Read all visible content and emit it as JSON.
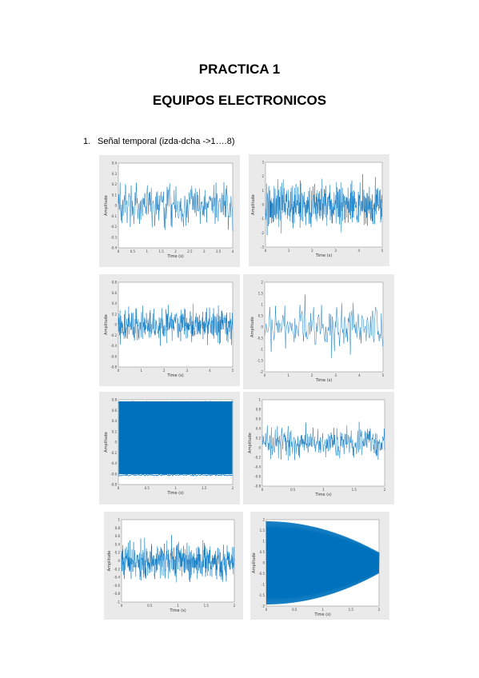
{
  "doc": {
    "title": "PRACTICA 1",
    "subtitle": "EQUIPOS ELECTRONICOS",
    "item_number": "1.",
    "item_text": "Señal temporal (izda-dcha ->1….8)"
  },
  "plot_color": "#0072bd",
  "plots": [
    {
      "xlabel": "Time (s)",
      "ylabel": "Amplitude",
      "yticks": [
        "0.4",
        "0.3",
        "0.2",
        "0.1",
        "0",
        "-0.1",
        "-0.2",
        "-0.3",
        "-0.4"
      ],
      "xticks": [
        "0",
        "0.5",
        "1",
        "1.5",
        "2",
        "2.5",
        "3",
        "3.5",
        "4"
      ]
    },
    {
      "xlabel": "Time (s)",
      "ylabel": "Amplitude",
      "yticks": [
        "3",
        "2",
        "1",
        "0",
        "-1",
        "-2",
        "-3"
      ],
      "xticks": [
        "0",
        "1",
        "2",
        "3",
        "4",
        "5"
      ]
    },
    {
      "xlabel": "Time (s)",
      "ylabel": "Amplitude",
      "yticks": [
        "0.8",
        "0.6",
        "0.4",
        "0.2",
        "0",
        "-0.2",
        "-0.4",
        "-0.6",
        "-0.8"
      ],
      "xticks": [
        "0",
        "1",
        "2",
        "3",
        "4",
        "5"
      ]
    },
    {
      "xlabel": "Time (s)",
      "ylabel": "Amplitude",
      "yticks": [
        "2",
        "1.5",
        "1",
        "0.5",
        "0",
        "-0.5",
        "-1",
        "-1.5",
        "-2"
      ],
      "xticks": [
        "0",
        "1",
        "2",
        "3",
        "4",
        "5"
      ]
    },
    {
      "xlabel": "Time (s)",
      "ylabel": "Amplitude",
      "yticks": [
        "0.8",
        "0.6",
        "0.4",
        "0.2",
        "0",
        "-0.2",
        "-0.4",
        "-0.6",
        "-0.8"
      ],
      "xticks": [
        "0",
        "0.5",
        "1",
        "1.5",
        "2"
      ]
    },
    {
      "xlabel": "Time (s)",
      "ylabel": "Amplitude",
      "yticks": [
        "1",
        "0.8",
        "0.6",
        "0.4",
        "0.2",
        "0",
        "-0.2",
        "-0.4",
        "-0.6",
        "-0.8"
      ],
      "xticks": [
        "0",
        "0.5",
        "1",
        "1.5",
        "2"
      ]
    },
    {
      "xlabel": "Time (s)",
      "ylabel": "Amplitude",
      "yticks": [
        "1",
        "0.8",
        "0.6",
        "0.4",
        "0.2",
        "0",
        "-0.2",
        "-0.4",
        "-0.6",
        "-0.8",
        "-1"
      ],
      "xticks": [
        "0",
        "0.5",
        "1",
        "1.5",
        "2"
      ]
    },
    {
      "xlabel": "Time (s)",
      "ylabel": "Amplitude",
      "yticks": [
        "2",
        "1.5",
        "1",
        "0.5",
        "0",
        "-0.5",
        "-1",
        "-1.5",
        "-2"
      ],
      "xticks": [
        "0",
        "0.5",
        "1",
        "1.5",
        "2"
      ]
    }
  ]
}
